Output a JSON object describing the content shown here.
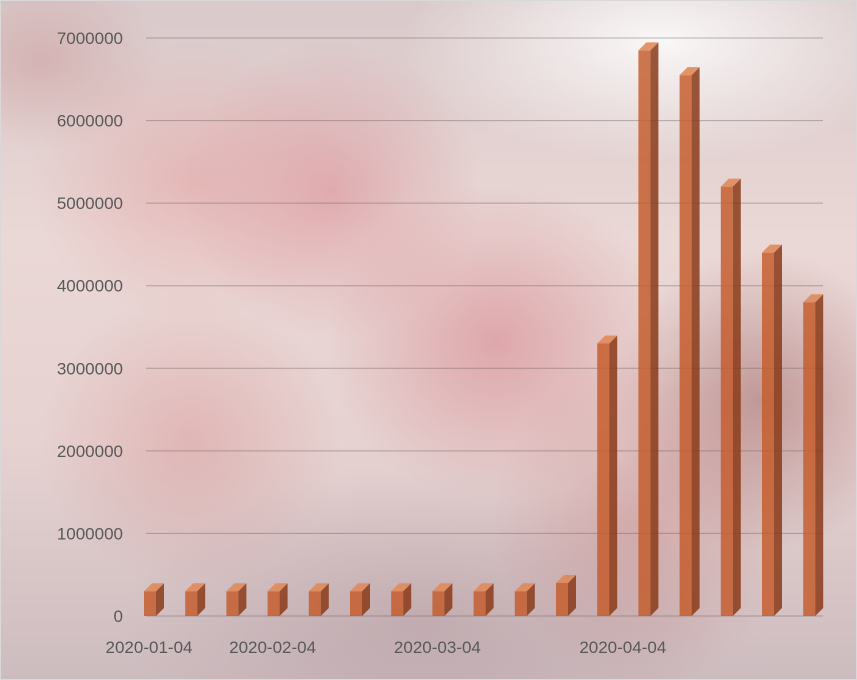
{
  "chart_data": {
    "type": "bar",
    "title": "",
    "xlabel": "",
    "ylabel": "",
    "ylim": [
      0,
      7000000
    ],
    "yticks": [
      0,
      1000000,
      2000000,
      3000000,
      4000000,
      5000000,
      6000000,
      7000000
    ],
    "x_tick_labels": [
      "2020-01-04",
      "2020-02-04",
      "2020-03-04",
      "2020-04-04"
    ],
    "x_tick_label_positions": [
      0,
      3,
      7,
      11.5
    ],
    "grid": true,
    "legend": "none",
    "bar_color": "#c55a2a",
    "values": [
      300000,
      300000,
      300000,
      300000,
      300000,
      300000,
      300000,
      300000,
      300000,
      300000,
      400000,
      3300000,
      6850000,
      6550000,
      5200000,
      4400000,
      3800000
    ]
  }
}
